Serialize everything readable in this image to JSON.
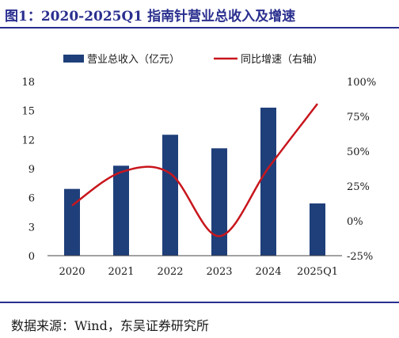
{
  "figure": {
    "title": "图1：2020-2025Q1 指南针营业总收入及增速",
    "source": "数据来源：Wind，东吴证券研究所"
  },
  "colors": {
    "bar": "#1f3f7a",
    "line": "#c8161d",
    "title": "#2a2f8f"
  },
  "chart_data": {
    "type": "bar",
    "categories": [
      "2020",
      "2021",
      "2022",
      "2023",
      "2024",
      "2025Q1"
    ],
    "series": [
      {
        "name": "营业总收入（亿元）",
        "type": "bar",
        "axis": "left",
        "values": [
          6.9,
          9.3,
          12.5,
          11.1,
          15.3,
          5.4
        ]
      },
      {
        "name": "同比增速（右轴）",
        "type": "line",
        "axis": "right",
        "smooth": true,
        "values": [
          11,
          35,
          34,
          -11,
          38,
          84
        ]
      }
    ],
    "y_left": {
      "ylim": [
        0,
        18
      ],
      "ticks": [
        "0",
        "3",
        "6",
        "9",
        "12",
        "15",
        "18"
      ]
    },
    "y_right": {
      "ylim": [
        -25,
        100
      ],
      "ticks": [
        "-25%",
        "0%",
        "25%",
        "50%",
        "75%",
        "100%"
      ]
    },
    "legend_position": "top",
    "grid": false
  }
}
